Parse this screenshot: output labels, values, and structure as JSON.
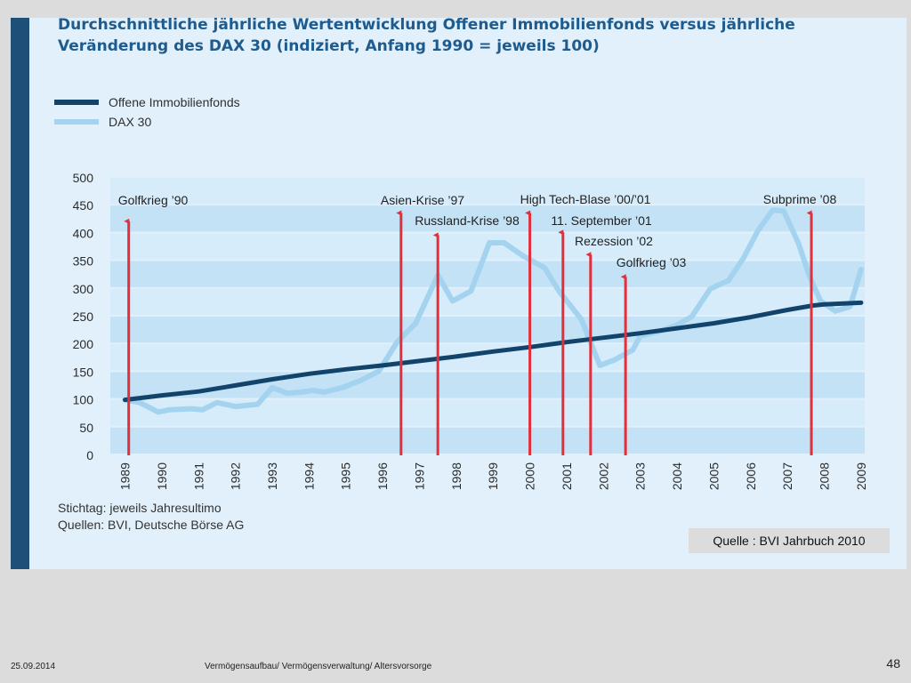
{
  "slide": {
    "source_badge": "Quelle : BVI Jahrbuch 2010",
    "footer_date": "25.09.2014",
    "footer_text": "Vermögensaufbau/ Vermögensverwaltung/ Altersvorsorge",
    "page_number": "48"
  },
  "footnotes": [
    "Stichtag: jeweils Jahresultimo",
    "Quellen: BVI, Deutsche Börse AG"
  ],
  "colors": {
    "panel": "#e1f0fb",
    "stripe": "#1d4f78",
    "fonds": "#12446b",
    "dax": "#a3d3ef",
    "arrow": "#e0303c",
    "title": "#1f5b8c"
  },
  "chart_data": {
    "type": "line",
    "title": "Durchschnittliche jährliche Wertentwicklung Offener Immobilienfonds versus jährliche Veränderung des DAX 30 (indiziert, Anfang 1990 = jeweils 100)",
    "x_ticks": [
      "1989",
      "1990",
      "1991",
      "1992",
      "1993",
      "1994",
      "1995",
      "1996",
      "1997",
      "1998",
      "1999",
      "2000",
      "2001",
      "2002",
      "2003",
      "2004",
      "2005",
      "2006",
      "2007",
      "2008",
      "2009"
    ],
    "y_ticks": [
      0,
      50,
      100,
      150,
      200,
      250,
      300,
      350,
      400,
      450,
      500
    ],
    "xlim": [
      1988.6,
      2009.1
    ],
    "ylim": [
      0,
      500
    ],
    "legend_position": "top-left",
    "grid": "horizontal bands",
    "series": [
      {
        "name": "Offene Immobilienfonds",
        "points": [
          [
            1989.0,
            100
          ],
          [
            1990.0,
            108
          ],
          [
            1991.0,
            115
          ],
          [
            1992.0,
            126
          ],
          [
            1993.0,
            137
          ],
          [
            1994.0,
            147
          ],
          [
            1995.0,
            155
          ],
          [
            1996.0,
            162
          ],
          [
            1997.0,
            170
          ],
          [
            1998.0,
            178
          ],
          [
            1999.0,
            187
          ],
          [
            2000.0,
            195
          ],
          [
            2001.0,
            204
          ],
          [
            2002.0,
            212
          ],
          [
            2003.0,
            220
          ],
          [
            2004.0,
            229
          ],
          [
            2005.0,
            238
          ],
          [
            2006.0,
            249
          ],
          [
            2007.0,
            262
          ],
          [
            2007.7,
            270
          ],
          [
            2008.0,
            272
          ],
          [
            2009.0,
            275
          ]
        ]
      },
      {
        "name": "DAX 30",
        "points": [
          [
            1989.0,
            100
          ],
          [
            1989.4,
            95
          ],
          [
            1989.9,
            78
          ],
          [
            1990.2,
            82
          ],
          [
            1990.8,
            84
          ],
          [
            1991.1,
            82
          ],
          [
            1991.5,
            95
          ],
          [
            1992.0,
            88
          ],
          [
            1992.6,
            92
          ],
          [
            1993.0,
            122
          ],
          [
            1993.4,
            112
          ],
          [
            1993.8,
            114
          ],
          [
            1994.1,
            117
          ],
          [
            1994.4,
            114
          ],
          [
            1994.9,
            122
          ],
          [
            1995.4,
            135
          ],
          [
            1995.9,
            152
          ],
          [
            1996.4,
            205
          ],
          [
            1996.9,
            238
          ],
          [
            1997.5,
            325
          ],
          [
            1997.9,
            278
          ],
          [
            1998.4,
            296
          ],
          [
            1998.9,
            383
          ],
          [
            1999.3,
            383
          ],
          [
            1999.8,
            360
          ],
          [
            2000.4,
            338
          ],
          [
            2000.8,
            295
          ],
          [
            2001.4,
            245
          ],
          [
            2001.9,
            162
          ],
          [
            2002.3,
            172
          ],
          [
            2002.8,
            190
          ],
          [
            2003.0,
            215
          ],
          [
            2003.6,
            225
          ],
          [
            2004.0,
            235
          ],
          [
            2004.4,
            250
          ],
          [
            2004.9,
            300
          ],
          [
            2005.4,
            315
          ],
          [
            2005.8,
            355
          ],
          [
            2006.2,
            405
          ],
          [
            2006.6,
            442
          ],
          [
            2006.9,
            440
          ],
          [
            2007.3,
            382
          ],
          [
            2007.6,
            322
          ],
          [
            2007.9,
            278
          ],
          [
            2008.3,
            260
          ],
          [
            2008.7,
            268
          ],
          [
            2009.0,
            335
          ]
        ]
      }
    ],
    "events": [
      {
        "label": "Golfkrieg ’90",
        "x": 1989.1,
        "y_top": 425
      },
      {
        "label": "Asien-Krise ’97",
        "x": 1996.5,
        "y_top": 440
      },
      {
        "label": "Russland-Krise ’98",
        "x": 1997.5,
        "y_top": 400
      },
      {
        "label": "High Tech-Blase ’00/’01",
        "x": 2000.0,
        "y_top": 440
      },
      {
        "label": "11. September ’01",
        "x": 2000.9,
        "y_top": 405
      },
      {
        "label": "Rezession ’02",
        "x": 2001.65,
        "y_top": 365
      },
      {
        "label": "Golfkrieg ’03",
        "x": 2002.6,
        "y_top": 325
      },
      {
        "label": "Subprime ’08",
        "x": 2007.65,
        "y_top": 440
      }
    ]
  }
}
